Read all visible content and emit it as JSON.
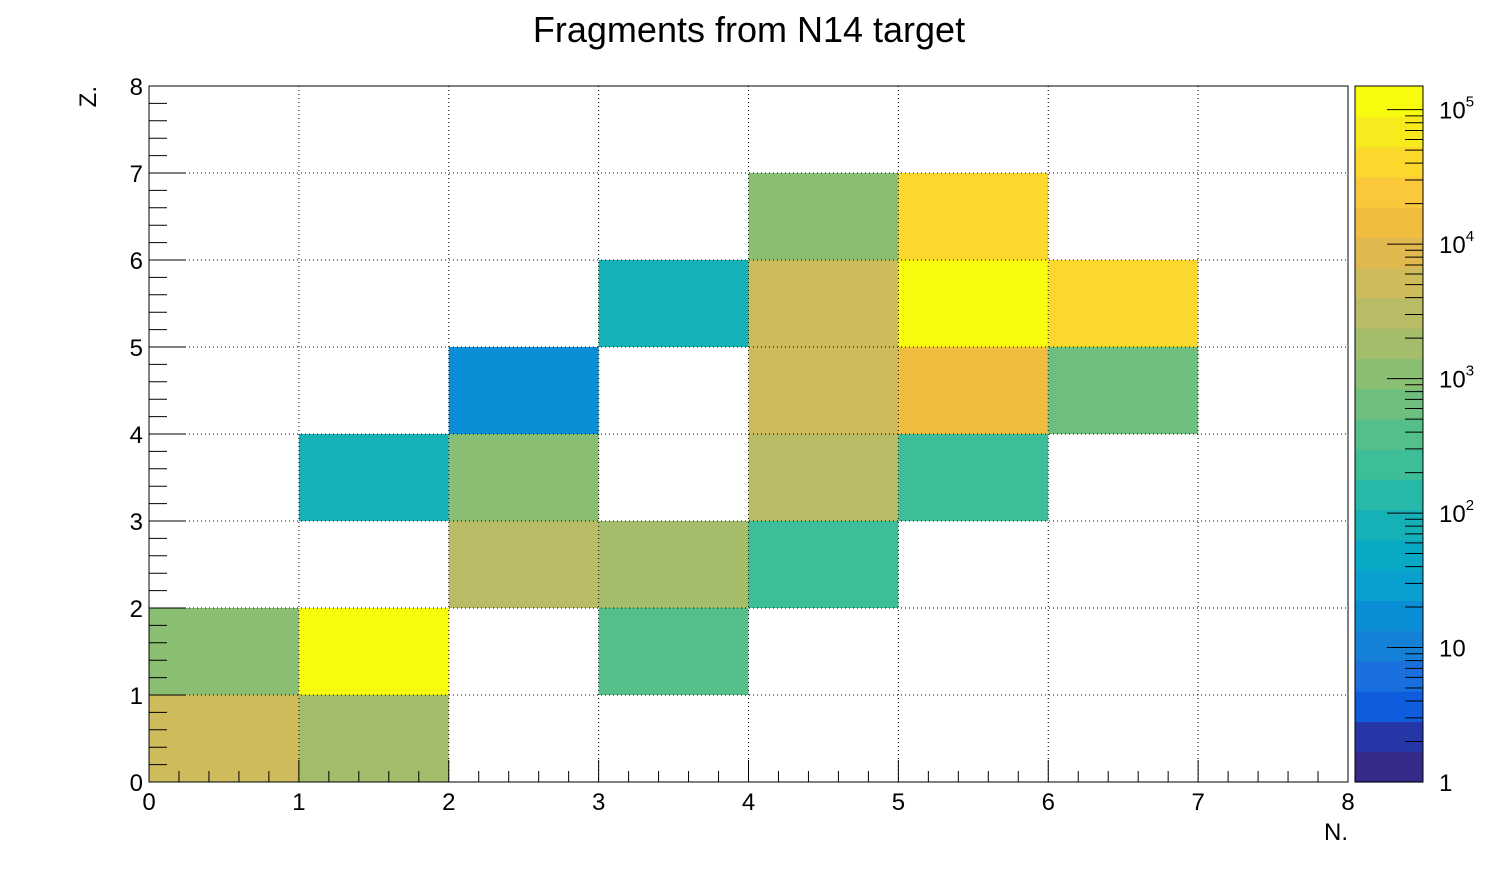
{
  "chart_data": {
    "type": "heatmap",
    "title": "Fragments from N14 target",
    "xlabel": "N.",
    "ylabel": "Z.",
    "xlim": [
      0,
      8
    ],
    "ylim": [
      0,
      8
    ],
    "x_ticks": [
      "0",
      "1",
      "2",
      "3",
      "4",
      "5",
      "6",
      "7",
      "8"
    ],
    "y_ticks": [
      "0",
      "1",
      "2",
      "3",
      "4",
      "5",
      "6",
      "7",
      "8"
    ],
    "grid": true,
    "z_scale": "log",
    "z_range": [
      1,
      150000
    ],
    "z_ticks": [
      {
        "base": "1",
        "exp": "",
        "value": 1
      },
      {
        "base": "10",
        "exp": "",
        "value": 10
      },
      {
        "base": "10",
        "exp": "2",
        "value": 100
      },
      {
        "base": "10",
        "exp": "3",
        "value": 1000
      },
      {
        "base": "10",
        "exp": "4",
        "value": 10000
      },
      {
        "base": "10",
        "exp": "5",
        "value": 100000
      }
    ],
    "palette": [
      "#352a87",
      "#2636a6",
      "#0f5cdd",
      "#1a6fdf",
      "#1481d6",
      "#0a8ed5",
      "#09a0d0",
      "#08a9c4",
      "#16b1b7",
      "#26b8a8",
      "#3dbd98",
      "#54bf88",
      "#6ebf7d",
      "#8abe73",
      "#a3bd6b",
      "#b9bc64",
      "#cebb5c",
      "#e0b94e",
      "#f1bd3e",
      "#fbc83b",
      "#fbd82b",
      "#f7ea1d",
      "#f9fb0e"
    ],
    "cells": [
      {
        "n": 0,
        "z": 0,
        "value": 5000
      },
      {
        "n": 1,
        "z": 0,
        "value": 1500
      },
      {
        "n": 0,
        "z": 1,
        "value": 1000
      },
      {
        "n": 1,
        "z": 1,
        "value": 100000
      },
      {
        "n": 3,
        "z": 1,
        "value": 400
      },
      {
        "n": 2,
        "z": 2,
        "value": 3000
      },
      {
        "n": 3,
        "z": 2,
        "value": 1500
      },
      {
        "n": 4,
        "z": 2,
        "value": 200
      },
      {
        "n": 1,
        "z": 3,
        "value": 100
      },
      {
        "n": 2,
        "z": 3,
        "value": 1000
      },
      {
        "n": 4,
        "z": 3,
        "value": 3000
      },
      {
        "n": 5,
        "z": 3,
        "value": 200
      },
      {
        "n": 2,
        "z": 4,
        "value": 20
      },
      {
        "n": 4,
        "z": 4,
        "value": 5000
      },
      {
        "n": 5,
        "z": 4,
        "value": 15000
      },
      {
        "n": 6,
        "z": 4,
        "value": 700
      },
      {
        "n": 3,
        "z": 5,
        "value": 100
      },
      {
        "n": 4,
        "z": 5,
        "value": 5000
      },
      {
        "n": 5,
        "z": 5,
        "value": 120000
      },
      {
        "n": 6,
        "z": 5,
        "value": 50000
      },
      {
        "n": 4,
        "z": 6,
        "value": 1000
      },
      {
        "n": 5,
        "z": 6,
        "value": 50000
      }
    ]
  }
}
